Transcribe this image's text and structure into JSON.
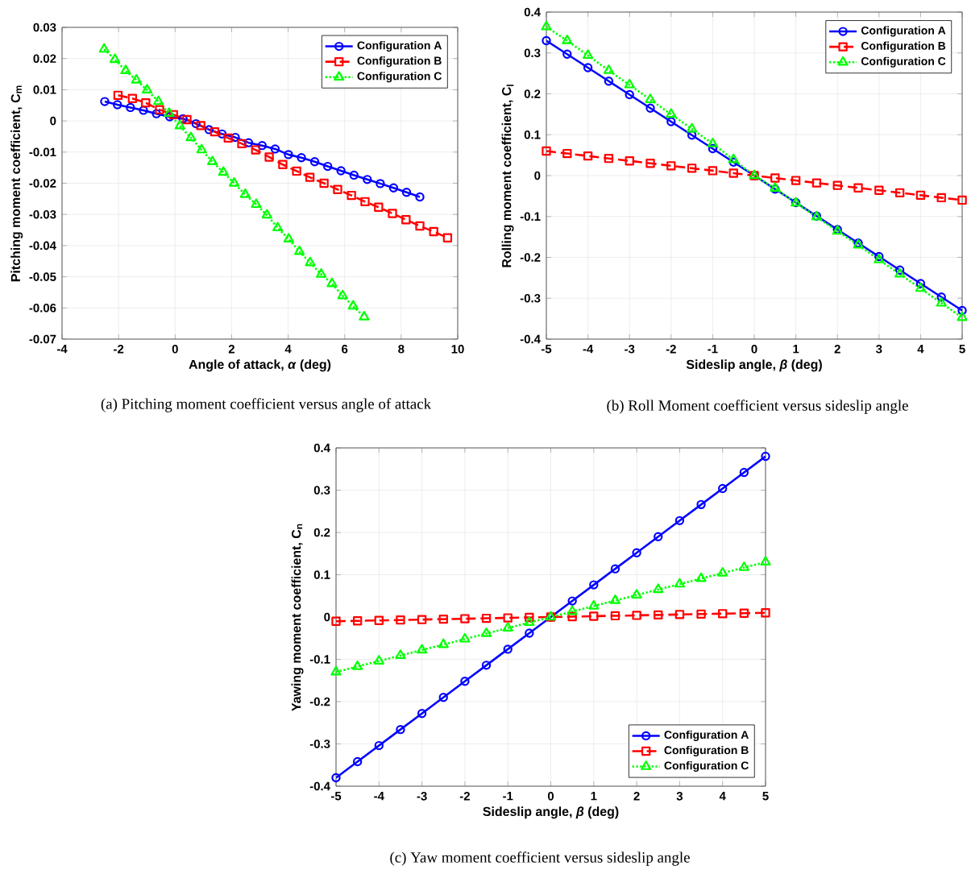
{
  "chart_data": [
    {
      "type": "line",
      "xlabel": "Angle of attack, *α* (deg)",
      "ylabel": "Pitching moment coefficient, C$_{m}$",
      "annotations": [
        "(a)   Pitching moment coefficient versus angle of attack"
      ],
      "xlim": [
        -4,
        10
      ],
      "ylim": [
        -0.07,
        0.03
      ],
      "xticks": [
        -4,
        -2,
        0,
        2,
        4,
        6,
        8,
        10
      ],
      "yticks": [
        -0.07,
        -0.06,
        -0.05,
        -0.04,
        -0.03,
        -0.02,
        -0.01,
        0,
        0.01,
        0.02,
        0.03
      ],
      "grid": true,
      "legend": "top right",
      "series": [
        {
          "name": "Configuration A",
          "color": "#0000ff",
          "marker": "circle",
          "line_style": "solid",
          "x": [
            -2.49,
            -2.04,
            -1.58,
            -1.12,
            -0.66,
            -0.19,
            0.28,
            0.74,
            1.2,
            1.66,
            2.13,
            2.6,
            3.08,
            3.54,
            4.01,
            4.47,
            4.94,
            5.4,
            5.87,
            6.33,
            6.8,
            7.26,
            7.73,
            8.19,
            8.66
          ],
          "values": [
            0.0062,
            0.0052,
            0.0043,
            0.0034,
            0.0023,
            0.0013,
            0.0007,
            -0.0009,
            -0.0028,
            -0.0042,
            -0.0053,
            -0.007,
            -0.0079,
            -0.009,
            -0.0108,
            -0.0118,
            -0.0131,
            -0.0146,
            -0.016,
            -0.0174,
            -0.0188,
            -0.0201,
            -0.0215,
            -0.0229,
            -0.0244
          ]
        },
        {
          "name": "Configuration B",
          "color": "#ff0000",
          "marker": "square",
          "line_style": "dashed",
          "x": [
            -2.02,
            -1.51,
            -1.04,
            -0.55,
            -0.06,
            0.42,
            0.91,
            1.4,
            1.88,
            2.36,
            2.85,
            3.33,
            3.81,
            4.3,
            4.77,
            5.27,
            5.75,
            6.24,
            6.72,
            7.2,
            7.69,
            8.17,
            8.66,
            9.15,
            9.64
          ],
          "values": [
            0.0082,
            0.0072,
            0.0058,
            0.0036,
            0.002,
            0.0004,
            -0.0015,
            -0.0035,
            -0.0055,
            -0.0073,
            -0.0093,
            -0.0116,
            -0.014,
            -0.0161,
            -0.0181,
            -0.02,
            -0.022,
            -0.0239,
            -0.0259,
            -0.0277,
            -0.0297,
            -0.0317,
            -0.0337,
            -0.0355,
            -0.0375
          ]
        },
        {
          "name": "Configuration C",
          "color": "#00ff00",
          "marker": "triangle",
          "line_style": "dotted",
          "x": [
            -2.51,
            -2.13,
            -1.75,
            -1.37,
            -0.99,
            -0.59,
            -0.21,
            0.17,
            0.56,
            0.94,
            1.32,
            1.71,
            2.09,
            2.48,
            2.87,
            3.25,
            3.63,
            4.02,
            4.4,
            4.78,
            5.17,
            5.55,
            5.93,
            6.3,
            6.69
          ],
          "values": [
            0.023,
            0.0197,
            0.0161,
            0.0131,
            0.0099,
            0.0062,
            0.0024,
            -0.0016,
            -0.0054,
            -0.0093,
            -0.0131,
            -0.0165,
            -0.02,
            -0.0236,
            -0.0268,
            -0.0302,
            -0.0343,
            -0.0379,
            -0.0419,
            -0.0455,
            -0.0492,
            -0.0522,
            -0.0561,
            -0.0594,
            -0.0629
          ]
        }
      ]
    },
    {
      "type": "line",
      "xlabel": "Sideslip angle, *β* (deg)",
      "ylabel": "Rolling moment coefficient, C$_{l}$",
      "annotations": [
        "(b)   Roll Moment coefficient versus sideslip angle"
      ],
      "xlim": [
        -5,
        5
      ],
      "ylim": [
        -0.4,
        0.4
      ],
      "xticks": [
        -5,
        -4,
        -3,
        -2,
        -1,
        0,
        1,
        2,
        3,
        4,
        5
      ],
      "yticks": [
        -0.4,
        -0.3,
        -0.2,
        -0.1,
        0,
        0.1,
        0.2,
        0.3,
        0.4
      ],
      "grid": true,
      "legend": "top right",
      "x": [
        -5,
        -4.5,
        -4,
        -3.5,
        -3,
        -2.5,
        -2,
        -1.5,
        -1,
        -0.5,
        0,
        0.5,
        1,
        1.5,
        2,
        2.5,
        3,
        3.5,
        4,
        4.5,
        5
      ],
      "series": [
        {
          "name": "Configuration A",
          "color": "#0000ff",
          "marker": "circle",
          "line_style": "solid",
          "values": [
            0.33,
            0.297,
            0.264,
            0.231,
            0.198,
            0.165,
            0.132,
            0.099,
            0.066,
            0.033,
            0,
            -0.033,
            -0.066,
            -0.099,
            -0.132,
            -0.165,
            -0.198,
            -0.231,
            -0.264,
            -0.297,
            -0.33
          ]
        },
        {
          "name": "Configuration B",
          "color": "#ff0000",
          "marker": "square",
          "line_style": "dashed",
          "values": [
            0.06,
            0.054,
            0.048,
            0.042,
            0.036,
            0.03,
            0.024,
            0.018,
            0.012,
            0.006,
            0,
            -0.006,
            -0.012,
            -0.018,
            -0.024,
            -0.03,
            -0.036,
            -0.042,
            -0.048,
            -0.054,
            -0.06
          ]
        },
        {
          "name": "Configuration C",
          "color": "#00ff00",
          "marker": "triangle",
          "line_style": "dotted",
          "values": [
            0.364,
            0.33,
            0.294,
            0.257,
            0.222,
            0.186,
            0.15,
            0.114,
            0.078,
            0.039,
            0,
            -0.031,
            -0.067,
            -0.101,
            -0.136,
            -0.17,
            -0.206,
            -0.241,
            -0.276,
            -0.312,
            -0.347
          ]
        }
      ]
    },
    {
      "type": "line",
      "xlabel": "Sideslip angle, *β* (deg)",
      "ylabel": "Yawing moment coefficient, C$_{n}$",
      "annotations": [
        "(c)   Yaw moment coefficient versus sideslip angle"
      ],
      "xlim": [
        -5,
        5
      ],
      "ylim": [
        -0.4,
        0.4
      ],
      "xticks": [
        -5,
        -4,
        -3,
        -2,
        -1,
        0,
        1,
        2,
        3,
        4,
        5
      ],
      "yticks": [
        -0.4,
        -0.3,
        -0.2,
        -0.1,
        0,
        0.1,
        0.2,
        0.3,
        0.4
      ],
      "grid": true,
      "legend": "bottom right",
      "x": [
        -5,
        -4.5,
        -4,
        -3.5,
        -3,
        -2.5,
        -2,
        -1.5,
        -1,
        -0.5,
        0,
        0.5,
        1,
        1.5,
        2,
        2.5,
        3,
        3.5,
        4,
        4.5,
        5
      ],
      "series": [
        {
          "name": "Configuration A",
          "color": "#0000ff",
          "marker": "circle",
          "line_style": "solid",
          "values": [
            -0.38,
            -0.342,
            -0.304,
            -0.266,
            -0.228,
            -0.19,
            -0.152,
            -0.114,
            -0.076,
            -0.038,
            0,
            0.038,
            0.076,
            0.114,
            0.152,
            0.19,
            0.228,
            0.266,
            0.304,
            0.342,
            0.38
          ]
        },
        {
          "name": "Configuration B",
          "color": "#ff0000",
          "marker": "square",
          "line_style": "dashed",
          "values": [
            -0.01,
            -0.009,
            -0.008,
            -0.007,
            -0.006,
            -0.005,
            -0.004,
            -0.003,
            -0.002,
            -0.001,
            0,
            0.001,
            0.002,
            0.003,
            0.004,
            0.005,
            0.006,
            0.007,
            0.008,
            0.009,
            0.01
          ]
        },
        {
          "name": "Configuration C",
          "color": "#00ff00",
          "marker": "triangle",
          "line_style": "dotted",
          "values": [
            -0.13,
            -0.117,
            -0.104,
            -0.091,
            -0.078,
            -0.065,
            -0.052,
            -0.039,
            -0.026,
            -0.013,
            0,
            0.013,
            0.026,
            0.039,
            0.052,
            0.065,
            0.078,
            0.091,
            0.104,
            0.117,
            0.13
          ]
        }
      ]
    }
  ]
}
